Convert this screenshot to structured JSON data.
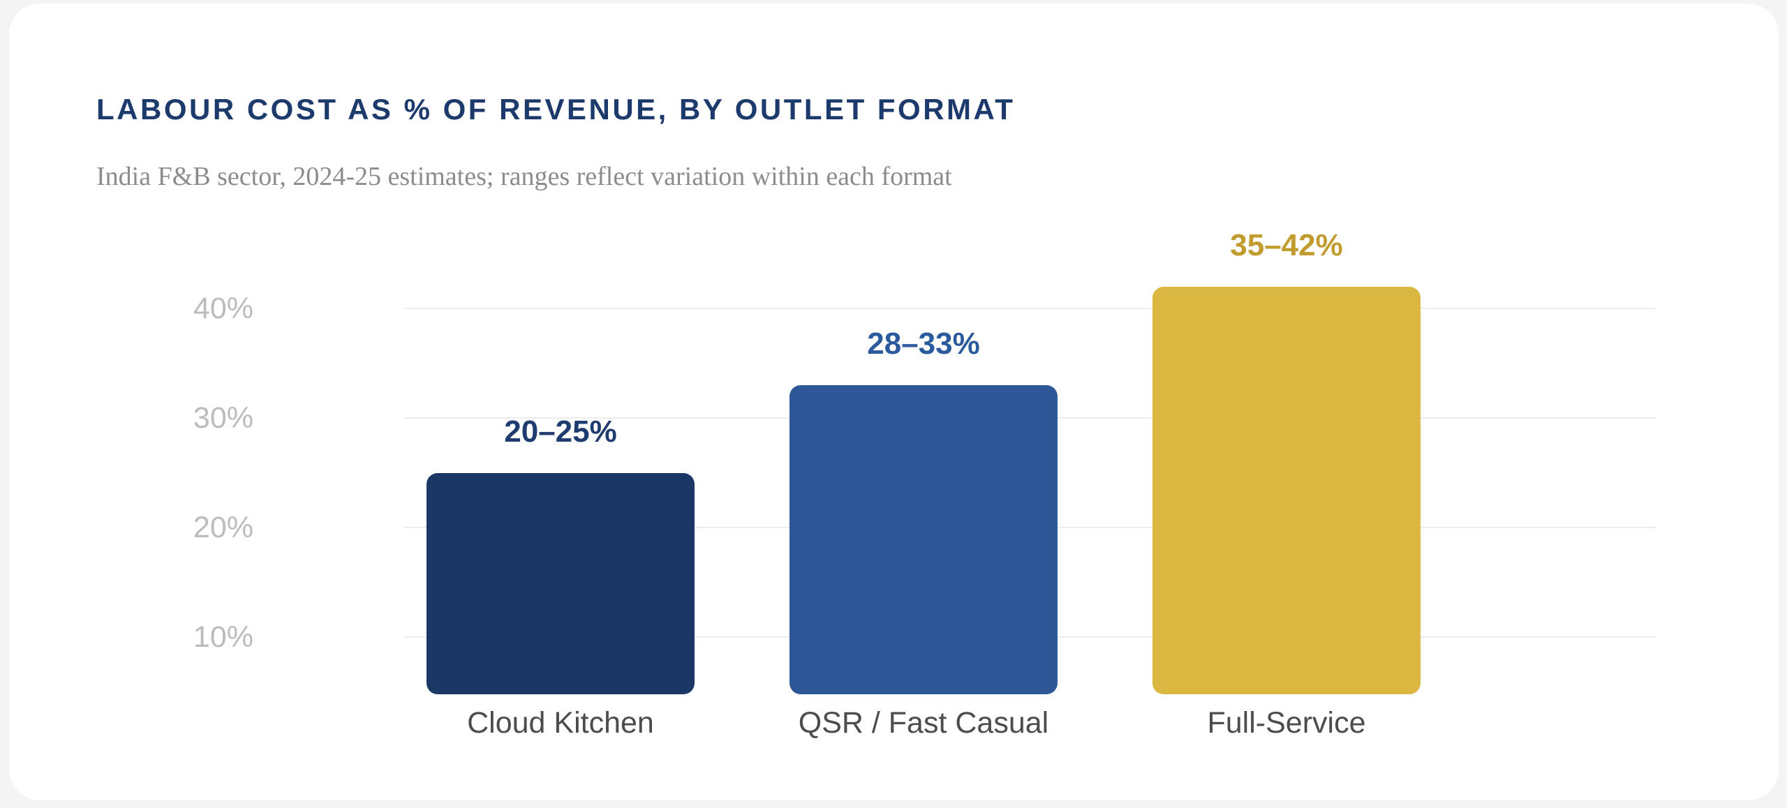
{
  "page": {
    "background_color": "#f4f4f5",
    "card_color": "#ffffff"
  },
  "header": {
    "title": "LABOUR COST AS % OF REVENUE, BY OUTLET FORMAT",
    "title_color": "#1d3a6d",
    "subtitle": "India F&B sector, 2024-25 estimates; ranges reflect variation within each format",
    "subtitle_color": "#8c8c8c"
  },
  "chart_data": {
    "type": "bar",
    "title": "LABOUR COST AS % OF REVENUE, BY OUTLET FORMAT",
    "subtitle": "India F&B sector, 2024-25 estimates; ranges reflect variation within each format",
    "xlabel": "",
    "ylabel": "",
    "unit": "% of revenue",
    "ylim": [
      0,
      45
    ],
    "grid": true,
    "legend": false,
    "yticks": [
      {
        "value": 40,
        "label": "40%"
      },
      {
        "value": 30,
        "label": "30%"
      },
      {
        "value": 20,
        "label": "20%"
      },
      {
        "value": 10,
        "label": "10%"
      }
    ],
    "categories": [
      "Cloud Kitchen",
      "QSR / Fast Casual",
      "Full-Service"
    ],
    "bars": [
      {
        "category": "Cloud Kitchen",
        "low": 20,
        "high": 25,
        "range_label": "20–25%",
        "bar_color": "#1a3766",
        "label_color": "#1e3c70"
      },
      {
        "category": "QSR / Fast Casual",
        "low": 28,
        "high": 33,
        "range_label": "28–33%",
        "bar_color": "#2d5796",
        "label_color": "#2c5b9d"
      },
      {
        "category": "Full-Service",
        "low": 35,
        "high": 42,
        "range_label": "35–42%",
        "bar_color": "#d9b740",
        "label_color": "#c19b2e"
      }
    ],
    "axis_text_color": "#bcbcbc",
    "category_text_color": "#4c4c4c",
    "gridline_color": "#ededed"
  }
}
